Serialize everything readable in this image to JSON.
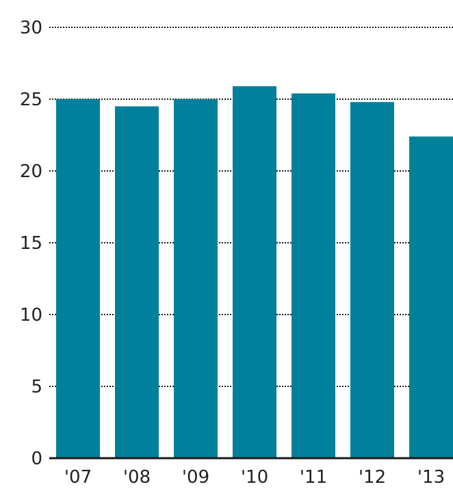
{
  "chart_data": {
    "type": "bar",
    "title": "",
    "xlabel": "",
    "ylabel": "",
    "categories": [
      "'07",
      "'08",
      "'09",
      "'10",
      "'11",
      "'12",
      "'13"
    ],
    "values": [
      25.0,
      24.5,
      25.0,
      25.9,
      25.4,
      24.8,
      22.4
    ],
    "ylim": [
      0,
      30
    ],
    "yticks": [
      "0",
      "5",
      "10",
      "15",
      "20",
      "25",
      "30"
    ],
    "grid": true,
    "colors": {
      "bar": "#00809A",
      "grid": "#1a1a1a",
      "axis": "#1a1a1a",
      "text": "#222222"
    }
  }
}
